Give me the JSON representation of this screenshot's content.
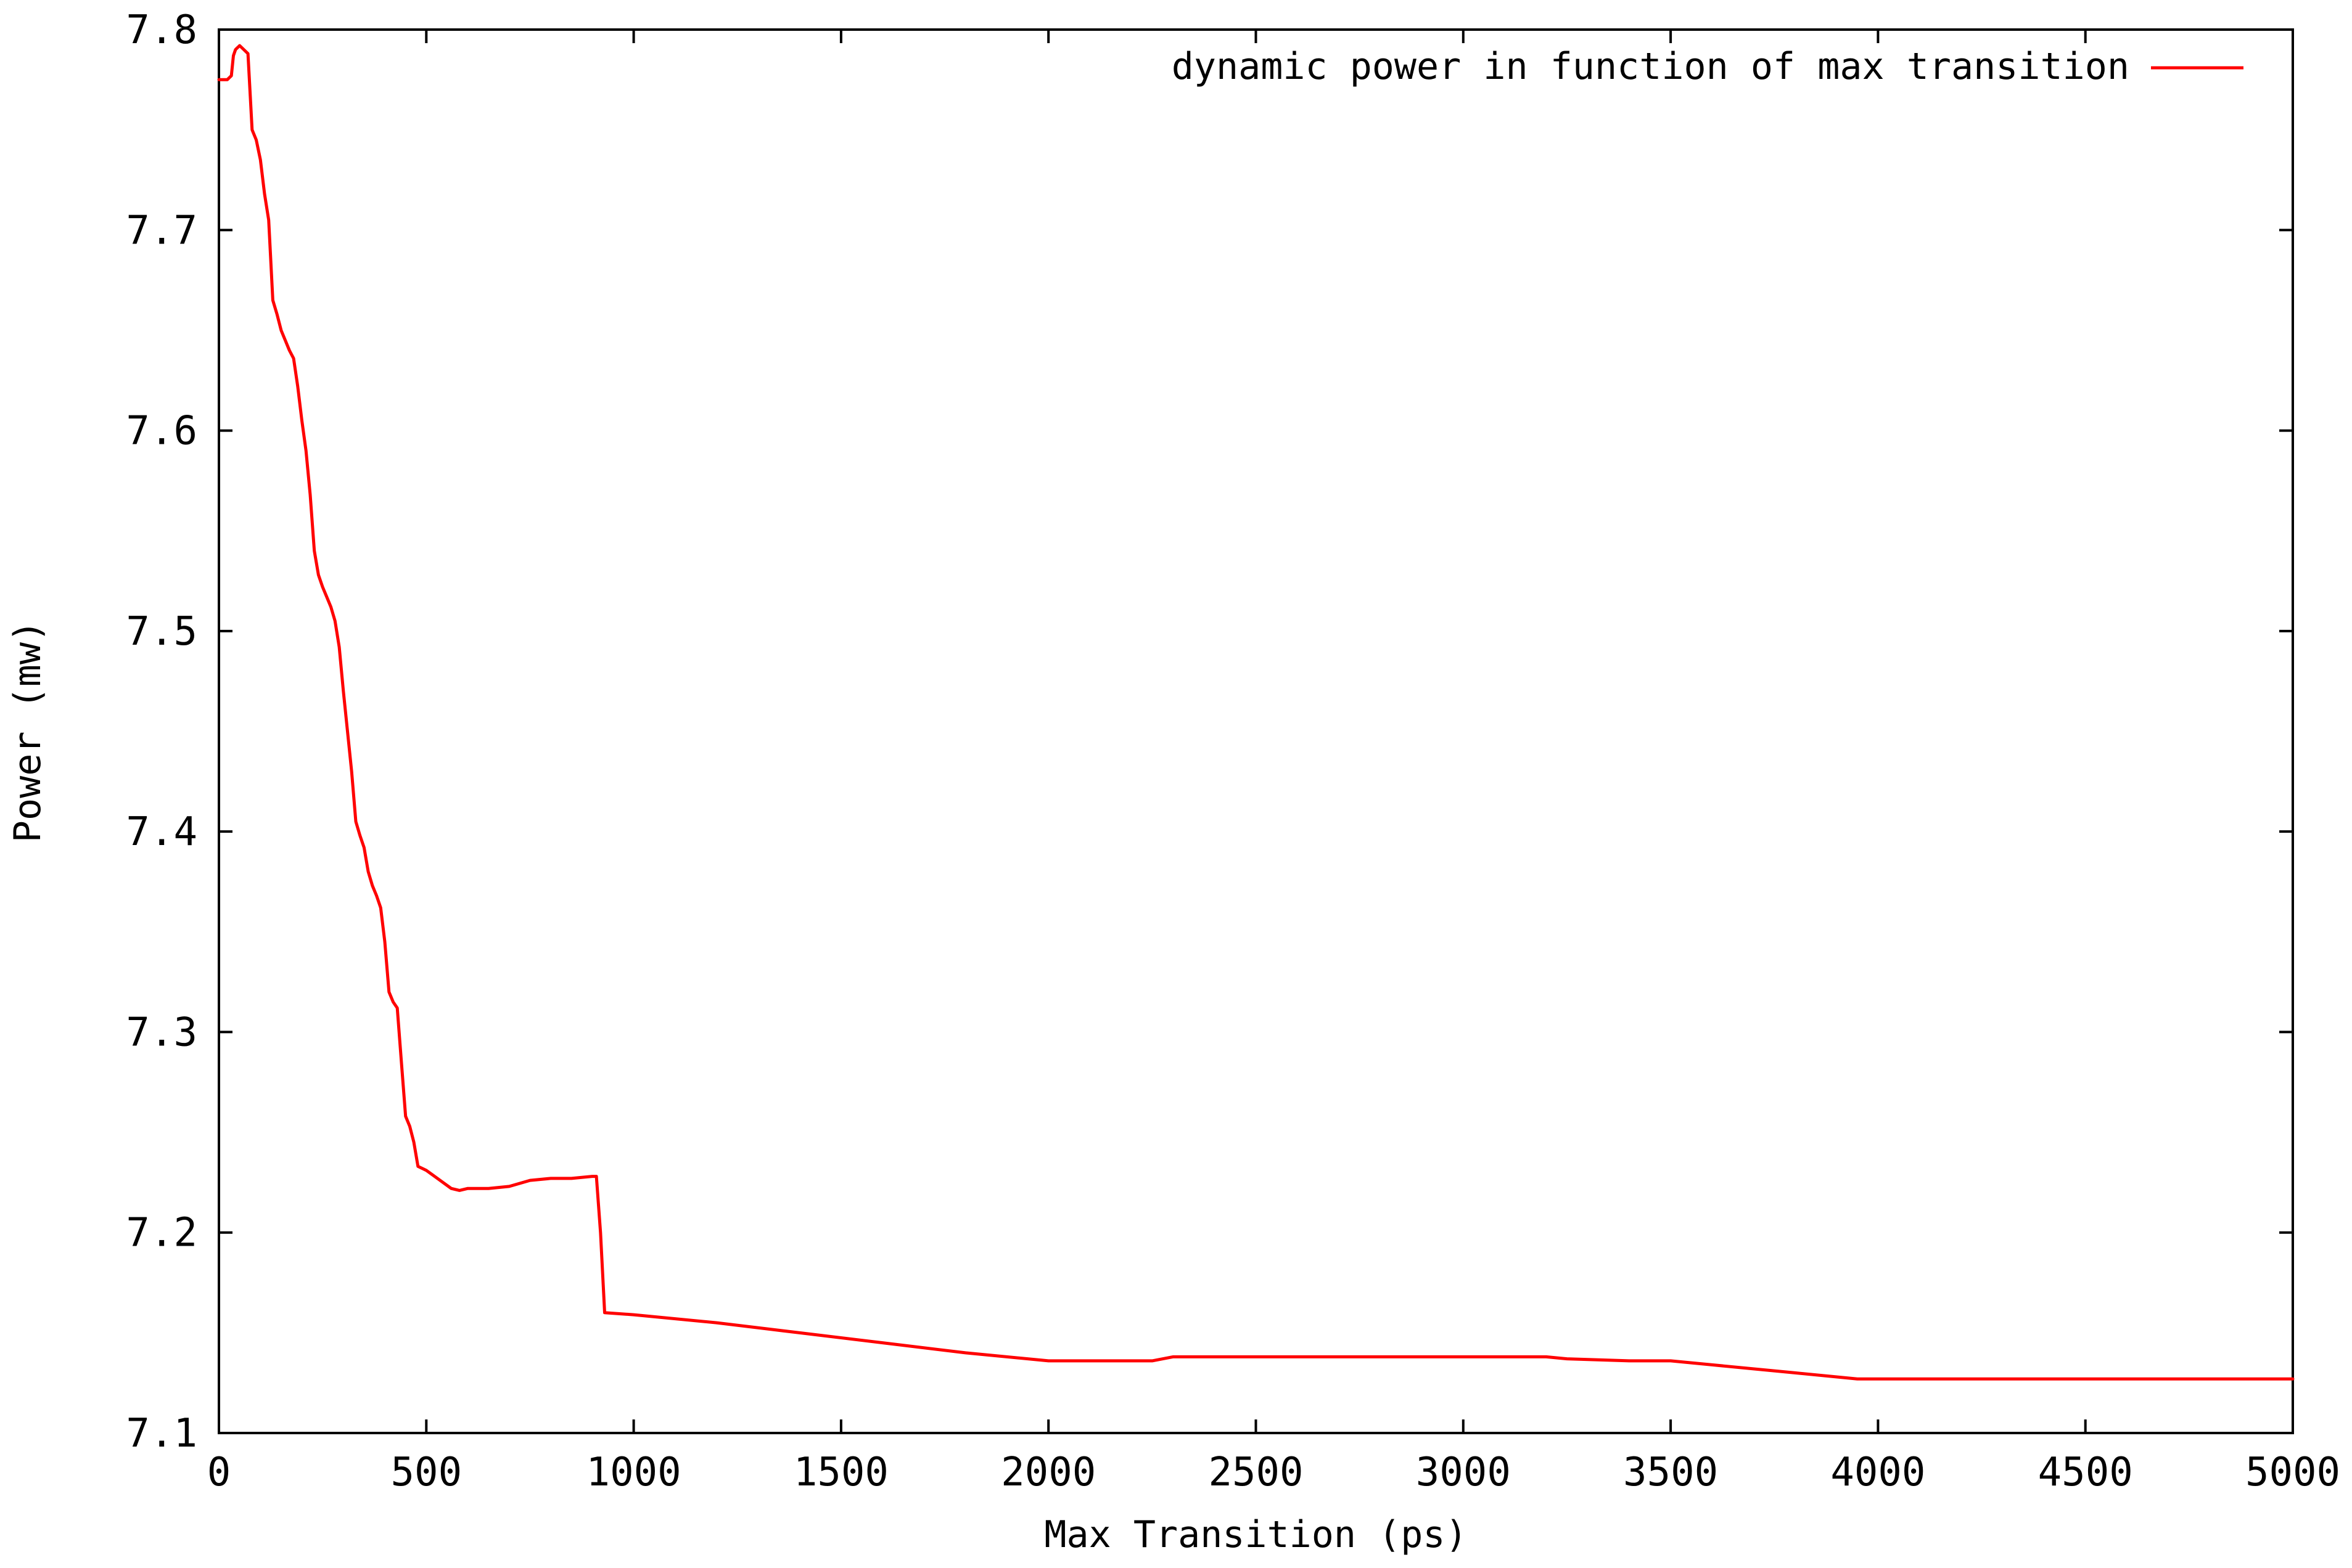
{
  "chart_data": {
    "type": "line",
    "title": "",
    "xlabel": "Max Transition (ps)",
    "ylabel": "Power (mw)",
    "xlim": [
      0,
      5000
    ],
    "ylim": [
      7.1,
      7.8
    ],
    "x_ticks": [
      0,
      500,
      1000,
      1500,
      2000,
      2500,
      3000,
      3500,
      4000,
      4500,
      5000
    ],
    "x_tick_labels": [
      "0",
      "500",
      "1000",
      "1500",
      "2000",
      "2500",
      "3000",
      "3500",
      "4000",
      "4500",
      "5000"
    ],
    "y_ticks": [
      7.1,
      7.2,
      7.3,
      7.4,
      7.5,
      7.6,
      7.7,
      7.8
    ],
    "y_tick_labels": [
      "7.1",
      "7.2",
      "7.3",
      "7.4",
      "7.5",
      "7.6",
      "7.7",
      "7.8"
    ],
    "grid": false,
    "legend_position": "top-right",
    "series": [
      {
        "name": "dynamic power in function of max transition",
        "color": "#ff0000",
        "x": [
          0,
          10,
          20,
          30,
          35,
          40,
          50,
          60,
          70,
          80,
          90,
          100,
          110,
          120,
          130,
          140,
          150,
          160,
          170,
          180,
          190,
          200,
          210,
          220,
          230,
          240,
          250,
          260,
          270,
          280,
          290,
          300,
          310,
          320,
          330,
          340,
          350,
          360,
          370,
          380,
          390,
          400,
          410,
          420,
          430,
          440,
          450,
          460,
          470,
          480,
          490,
          500,
          520,
          540,
          560,
          580,
          600,
          650,
          700,
          750,
          800,
          850,
          900,
          910,
          920,
          930,
          1000,
          1200,
          1400,
          1600,
          1800,
          2000,
          2100,
          2200,
          2250,
          2300,
          2500,
          3000,
          3200,
          3250,
          3400,
          3500,
          3600,
          3800,
          3950,
          4000,
          4200,
          4500,
          4800,
          5000
        ],
        "y": [
          7.775,
          7.775,
          7.775,
          7.777,
          7.787,
          7.79,
          7.792,
          7.79,
          7.788,
          7.75,
          7.745,
          7.735,
          7.718,
          7.705,
          7.665,
          7.658,
          7.65,
          7.645,
          7.64,
          7.636,
          7.622,
          7.605,
          7.59,
          7.568,
          7.54,
          7.528,
          7.522,
          7.517,
          7.512,
          7.505,
          7.492,
          7.47,
          7.45,
          7.43,
          7.405,
          7.398,
          7.392,
          7.38,
          7.373,
          7.368,
          7.362,
          7.345,
          7.32,
          7.315,
          7.312,
          7.285,
          7.258,
          7.253,
          7.245,
          7.233,
          7.232,
          7.231,
          7.228,
          7.225,
          7.222,
          7.221,
          7.222,
          7.222,
          7.223,
          7.226,
          7.227,
          7.227,
          7.228,
          7.228,
          7.2,
          7.16,
          7.159,
          7.155,
          7.15,
          7.145,
          7.14,
          7.136,
          7.136,
          7.136,
          7.136,
          7.138,
          7.138,
          7.138,
          7.138,
          7.137,
          7.136,
          7.136,
          7.134,
          7.13,
          7.127,
          7.127,
          7.127,
          7.127,
          7.127,
          7.127
        ]
      }
    ]
  }
}
